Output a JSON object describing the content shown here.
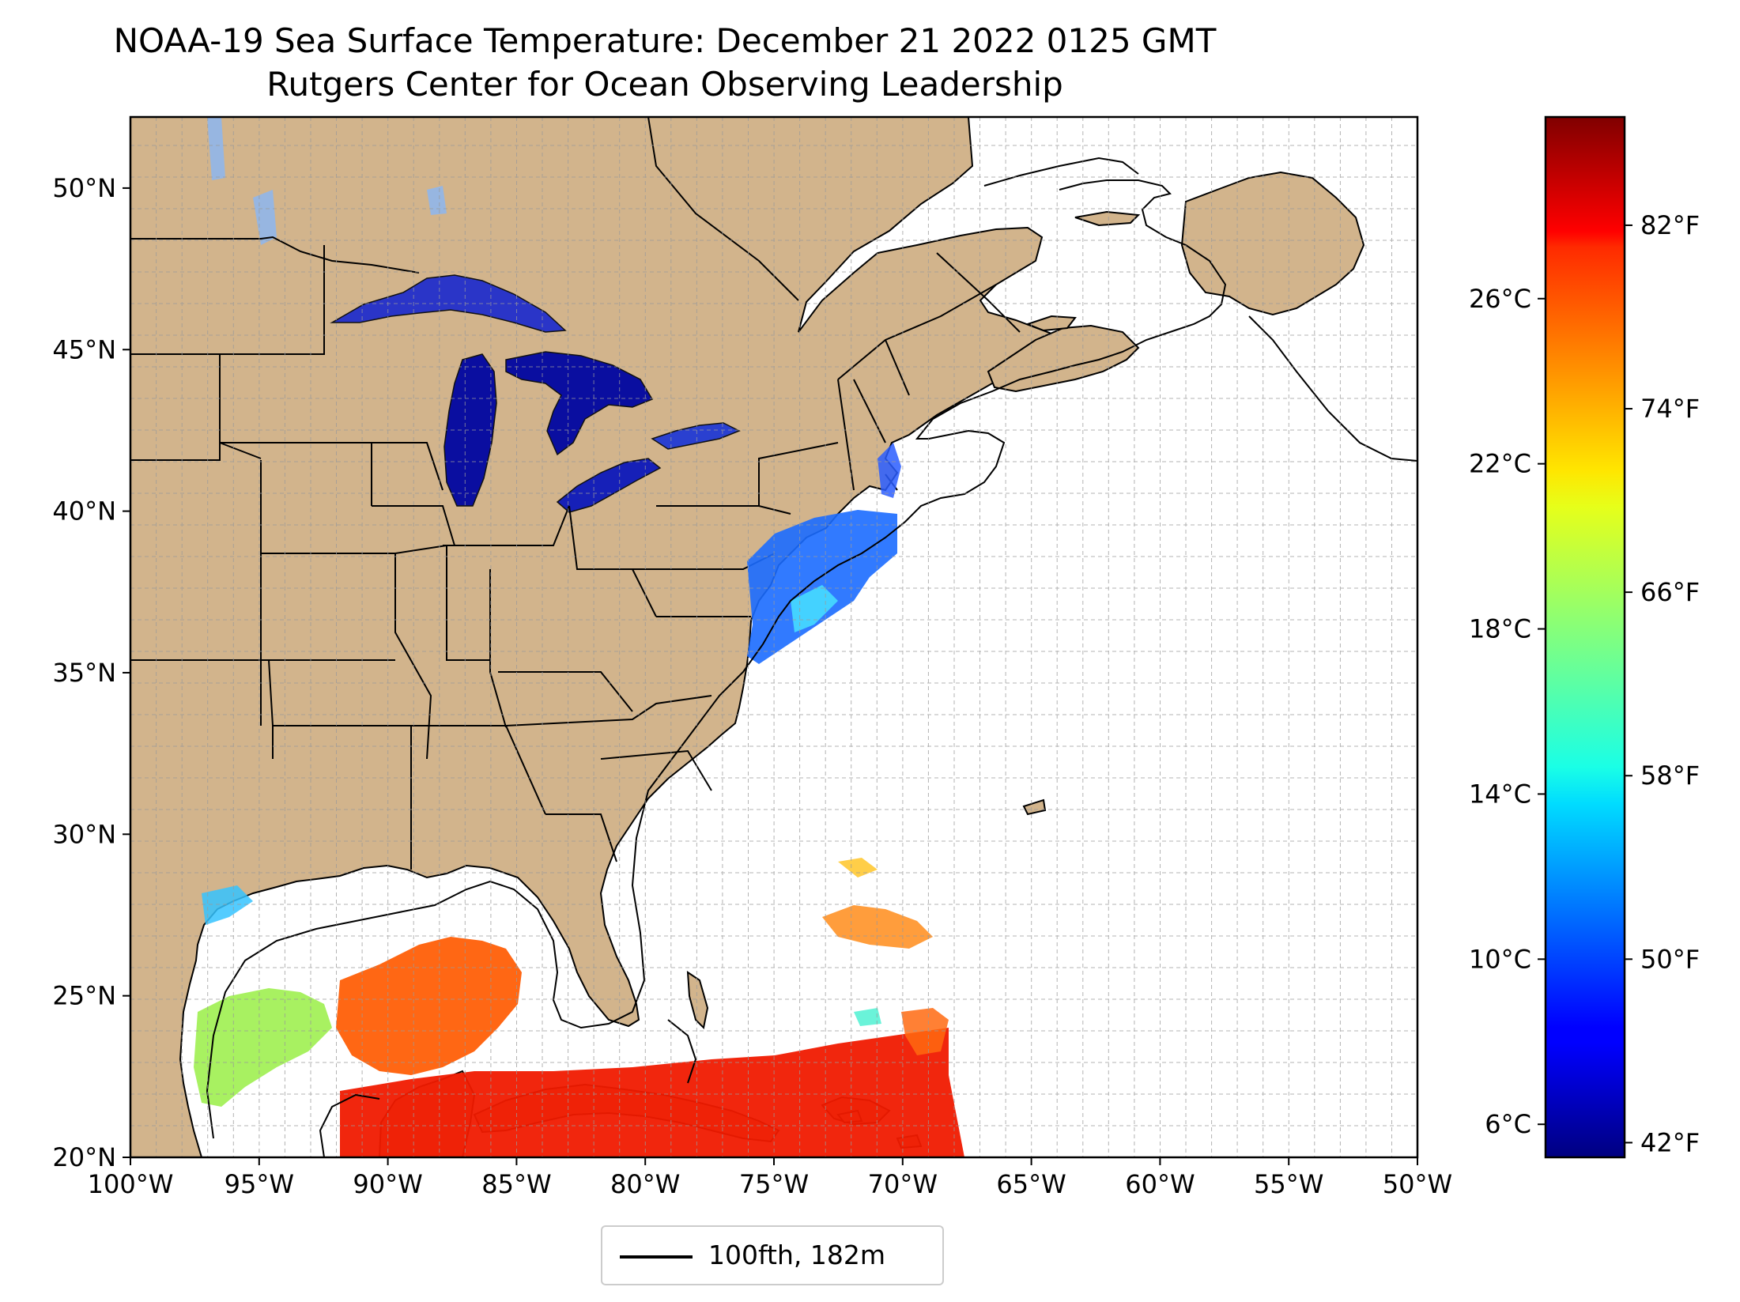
{
  "title": "NOAA-19 Sea Surface Temperature: December 21 2022 0125 GMT",
  "subtitle": "Rutgers Center for Ocean Observing Leadership",
  "map": {
    "lon_range": [
      -100,
      -50
    ],
    "lat_range": [
      20,
      52.2
    ],
    "grid": true,
    "land_color": "#d2b48c",
    "lake_color": "#97b6e1",
    "ocean_color": "#ffffff",
    "border_color": "#000000",
    "lon_ticks": [
      {
        "value": -100,
        "label": "100°W"
      },
      {
        "value": -95,
        "label": "95°W"
      },
      {
        "value": -90,
        "label": "90°W"
      },
      {
        "value": -85,
        "label": "85°W"
      },
      {
        "value": -80,
        "label": "80°W"
      },
      {
        "value": -75,
        "label": "75°W"
      },
      {
        "value": -70,
        "label": "70°W"
      },
      {
        "value": -65,
        "label": "65°W"
      },
      {
        "value": -60,
        "label": "60°W"
      },
      {
        "value": -55,
        "label": "55°W"
      },
      {
        "value": -50,
        "label": "50°W"
      }
    ],
    "lat_ticks": [
      {
        "value": 20,
        "label": "20°N"
      },
      {
        "value": 25,
        "label": "25°N"
      },
      {
        "value": 30,
        "label": "30°N"
      },
      {
        "value": 35,
        "label": "35°N"
      },
      {
        "value": 40,
        "label": "40°N"
      },
      {
        "value": 45,
        "label": "45°N"
      },
      {
        "value": 50,
        "label": "50°N"
      }
    ]
  },
  "colorbar": {
    "colormap": "jet",
    "range_c": [
      5.2,
      30.4
    ],
    "celsius_ticks": [
      {
        "value": 6,
        "label": "6°C"
      },
      {
        "value": 10,
        "label": "10°C"
      },
      {
        "value": 14,
        "label": "14°C"
      },
      {
        "value": 18,
        "label": "18°C"
      },
      {
        "value": 22,
        "label": "22°C"
      },
      {
        "value": 26,
        "label": "26°C"
      }
    ],
    "fahrenheit_ticks": [
      {
        "value": 42,
        "label": "42°F"
      },
      {
        "value": 50,
        "label": "50°F"
      },
      {
        "value": 58,
        "label": "58°F"
      },
      {
        "value": 66,
        "label": "66°F"
      },
      {
        "value": 74,
        "label": "74°F"
      },
      {
        "value": 82,
        "label": "82°F"
      }
    ]
  },
  "legend": {
    "label": "100fth, 182m",
    "line_color": "#000000"
  }
}
